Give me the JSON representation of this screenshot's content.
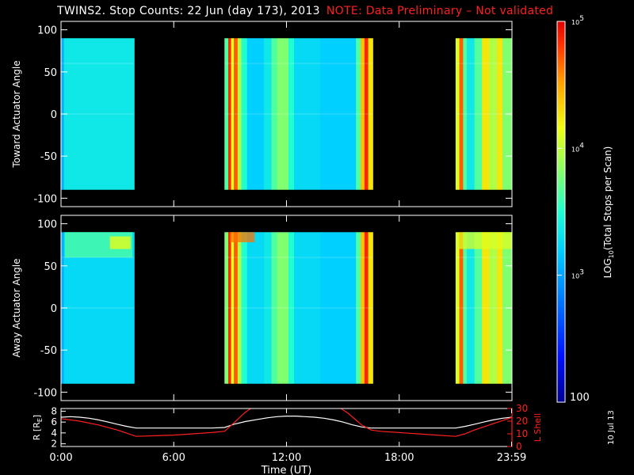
{
  "title": {
    "main": "TWINS2. Stop Counts: 22 Jun (day 173), 2013",
    "note": "NOTE: Data Preliminary – Not validated"
  },
  "datestamp": "10 Jul 13",
  "colors": {
    "background": "#000000",
    "frame": "#ffffff",
    "note": "#ff1f1f",
    "r_line": "#ffffff",
    "lshell_line": "#ff1f1f"
  },
  "chart_data": [
    {
      "type": "heatmap",
      "panel": "toward",
      "ylabel": "Toward Actuator Angle",
      "ylim": [
        -110,
        110
      ],
      "yticks": [
        100,
        50,
        0,
        -50,
        -100
      ],
      "xlim": [
        0,
        24
      ],
      "data_extent": [
        -90,
        90
      ],
      "data_hours": [
        [
          0,
          3.9
        ],
        [
          8.7,
          16.6
        ],
        [
          21.0,
          24.0
        ]
      ],
      "color_bands": [
        {
          "x0": 0.0,
          "x1": 0.15,
          "level": 0.35
        },
        {
          "x0": 0.15,
          "x1": 3.9,
          "level": 0.45
        },
        {
          "x0": 8.7,
          "x1": 8.9,
          "level": 0.55
        },
        {
          "x0": 8.9,
          "x1": 9.05,
          "level": 0.95
        },
        {
          "x0": 9.05,
          "x1": 9.2,
          "level": 0.7
        },
        {
          "x0": 9.2,
          "x1": 9.4,
          "level": 0.9
        },
        {
          "x0": 9.4,
          "x1": 9.6,
          "level": 0.65
        },
        {
          "x0": 9.6,
          "x1": 9.9,
          "level": 0.5
        },
        {
          "x0": 9.9,
          "x1": 10.8,
          "level": 0.4
        },
        {
          "x0": 10.8,
          "x1": 11.2,
          "level": 0.45
        },
        {
          "x0": 11.2,
          "x1": 11.5,
          "level": 0.55
        },
        {
          "x0": 11.5,
          "x1": 12.1,
          "level": 0.6
        },
        {
          "x0": 12.1,
          "x1": 12.4,
          "level": 0.5
        },
        {
          "x0": 12.4,
          "x1": 13.8,
          "level": 0.42
        },
        {
          "x0": 13.8,
          "x1": 15.7,
          "level": 0.4
        },
        {
          "x0": 15.7,
          "x1": 15.95,
          "level": 0.55
        },
        {
          "x0": 15.95,
          "x1": 16.15,
          "level": 0.8
        },
        {
          "x0": 16.15,
          "x1": 16.35,
          "level": 0.95
        },
        {
          "x0": 16.35,
          "x1": 16.6,
          "level": 0.75
        },
        {
          "x0": 21.0,
          "x1": 21.2,
          "level": 0.7
        },
        {
          "x0": 21.2,
          "x1": 21.4,
          "level": 0.9
        },
        {
          "x0": 21.4,
          "x1": 21.6,
          "level": 0.55
        },
        {
          "x0": 21.6,
          "x1": 22.0,
          "level": 0.45
        },
        {
          "x0": 22.0,
          "x1": 22.4,
          "level": 0.55
        },
        {
          "x0": 22.4,
          "x1": 22.8,
          "level": 0.75
        },
        {
          "x0": 22.8,
          "x1": 23.2,
          "level": 0.65
        },
        {
          "x0": 23.2,
          "x1": 23.5,
          "level": 0.75
        },
        {
          "x0": 23.5,
          "x1": 24.0,
          "level": 0.6
        }
      ],
      "hot_spots": []
    },
    {
      "type": "heatmap",
      "panel": "away",
      "ylabel": "Away Actuator Angle",
      "ylim": [
        -110,
        110
      ],
      "yticks": [
        100,
        50,
        0,
        -50,
        -100
      ],
      "xlim": [
        0,
        24
      ],
      "data_extent": [
        -90,
        90
      ],
      "data_hours": [
        [
          0,
          3.9
        ],
        [
          8.7,
          16.6
        ],
        [
          21.0,
          24.0
        ]
      ],
      "color_bands": [
        {
          "x0": 0.0,
          "x1": 0.15,
          "level": 0.35
        },
        {
          "x0": 0.15,
          "x1": 3.9,
          "level": 0.42
        },
        {
          "x0": 8.7,
          "x1": 8.9,
          "level": 0.6
        },
        {
          "x0": 8.9,
          "x1": 9.05,
          "level": 0.95
        },
        {
          "x0": 9.05,
          "x1": 9.2,
          "level": 0.7
        },
        {
          "x0": 9.2,
          "x1": 9.4,
          "level": 0.9
        },
        {
          "x0": 9.4,
          "x1": 9.6,
          "level": 0.65
        },
        {
          "x0": 9.6,
          "x1": 9.9,
          "level": 0.5
        },
        {
          "x0": 9.9,
          "x1": 10.8,
          "level": 0.42
        },
        {
          "x0": 10.8,
          "x1": 11.2,
          "level": 0.45
        },
        {
          "x0": 11.2,
          "x1": 11.5,
          "level": 0.55
        },
        {
          "x0": 11.5,
          "x1": 12.1,
          "level": 0.6
        },
        {
          "x0": 12.1,
          "x1": 12.4,
          "level": 0.5
        },
        {
          "x0": 12.4,
          "x1": 13.8,
          "level": 0.42
        },
        {
          "x0": 13.8,
          "x1": 15.7,
          "level": 0.4
        },
        {
          "x0": 15.7,
          "x1": 15.95,
          "level": 0.55
        },
        {
          "x0": 15.95,
          "x1": 16.15,
          "level": 0.8
        },
        {
          "x0": 16.15,
          "x1": 16.35,
          "level": 0.95
        },
        {
          "x0": 16.35,
          "x1": 16.6,
          "level": 0.75
        },
        {
          "x0": 21.0,
          "x1": 21.2,
          "level": 0.7
        },
        {
          "x0": 21.2,
          "x1": 21.4,
          "level": 0.9
        },
        {
          "x0": 21.4,
          "x1": 21.6,
          "level": 0.55
        },
        {
          "x0": 21.6,
          "x1": 22.0,
          "level": 0.45
        },
        {
          "x0": 22.0,
          "x1": 22.4,
          "level": 0.55
        },
        {
          "x0": 22.4,
          "x1": 22.8,
          "level": 0.75
        },
        {
          "x0": 22.8,
          "x1": 23.2,
          "level": 0.65
        },
        {
          "x0": 23.2,
          "x1": 23.5,
          "level": 0.75
        },
        {
          "x0": 23.5,
          "x1": 24.0,
          "level": 0.6
        }
      ],
      "hot_spots": [
        {
          "x0": 0.2,
          "x1": 3.8,
          "y0": 60,
          "y1": 90,
          "level": 0.55
        },
        {
          "x0": 2.6,
          "x1": 3.7,
          "y0": 70,
          "y1": 85,
          "level": 0.72
        },
        {
          "x0": 9.0,
          "x1": 10.3,
          "y0": 78,
          "y1": 90,
          "level": 0.88
        },
        {
          "x0": 21.2,
          "x1": 24.0,
          "y0": 70,
          "y1": 90,
          "level": 0.7
        }
      ]
    },
    {
      "type": "line",
      "panel": "orbit",
      "ylabel_left": "R [R",
      "ylabel_left_sub": "E",
      "ylabel_left_close": "]",
      "ylabel_right": "L Shell",
      "xlabel": "Time (UT)",
      "xticks": [
        "0:00",
        "6:00",
        "12:00",
        "18:00",
        "23:59"
      ],
      "xtick_hours": [
        0,
        6,
        12,
        18,
        23.98
      ],
      "xlim": [
        0,
        24
      ],
      "ylim_left": [
        1.5,
        8.5
      ],
      "yticks_left": [
        8,
        6,
        4,
        2
      ],
      "ylim_right": [
        0,
        30
      ],
      "yticks_right": [
        30,
        20,
        10,
        0
      ],
      "series": [
        {
          "axis": "left",
          "color": "#ffffff",
          "x": [
            0,
            0.5,
            1,
            1.5,
            2,
            2.5,
            3,
            3.5,
            4,
            5,
            6,
            7,
            8,
            8.7,
            9.2,
            9.8,
            10.5,
            11,
            11.5,
            12,
            12.5,
            13,
            13.5,
            14,
            14.5,
            15,
            15.5,
            16,
            16.5,
            17,
            18,
            19,
            20,
            21,
            21.5,
            22,
            22.5,
            23,
            23.5,
            24
          ],
          "y": [
            6.9,
            7.0,
            6.9,
            6.7,
            6.4,
            6.0,
            5.6,
            5.2,
            4.9,
            4.9,
            4.9,
            4.9,
            4.9,
            5.0,
            5.6,
            6.1,
            6.5,
            6.8,
            7.0,
            7.1,
            7.1,
            7.0,
            6.9,
            6.7,
            6.4,
            6.0,
            5.5,
            5.1,
            4.9,
            4.9,
            4.9,
            4.9,
            4.9,
            4.9,
            5.2,
            5.6,
            6.0,
            6.4,
            6.7,
            6.9
          ]
        },
        {
          "axis": "right",
          "color": "#ff1f1f",
          "x": [
            0,
            1,
            2,
            3,
            4,
            5,
            6,
            7,
            8,
            8.7,
            9.3,
            9.8,
            10.2,
            14.8,
            15.3,
            16.0,
            16.5,
            17,
            18,
            19,
            20,
            21,
            21.5,
            22,
            23,
            24
          ],
          "y": [
            22,
            20,
            17,
            13,
            8,
            8.5,
            9,
            10,
            11,
            12,
            20,
            27,
            31,
            31,
            26,
            17,
            13,
            12,
            11,
            10,
            9,
            8,
            10,
            13,
            18,
            23
          ]
        }
      ]
    }
  ],
  "colorbar": {
    "label_prefix": "LOG",
    "label_sub": "10",
    "label_rest": "(Total Stops per Scan)",
    "ticks": [
      {
        "base": "10",
        "exp": "5",
        "level": 1.0
      },
      {
        "base": "10",
        "exp": "4",
        "level": 0.5
      },
      {
        "base": "10",
        "exp": "3",
        "level": 0.0
      }
    ],
    "bottom_label": "100",
    "bottom_level": -0.5
  }
}
